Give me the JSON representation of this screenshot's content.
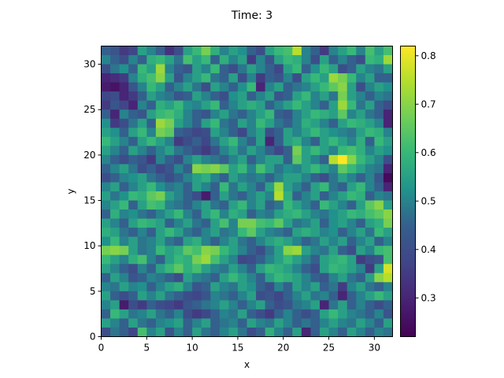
{
  "chart_data": {
    "type": "heatmap",
    "title": "Time: 3",
    "xlabel": "x",
    "ylabel": "y",
    "xlim": [
      0,
      32
    ],
    "ylim": [
      0,
      32
    ],
    "xticks": [
      0,
      5,
      10,
      15,
      20,
      25,
      30
    ],
    "yticks": [
      0,
      5,
      10,
      15,
      20,
      25,
      30
    ],
    "colormap": "viridis",
    "colorbar": {
      "min": 0.22,
      "max": 0.82,
      "ticks": [
        0.3,
        0.4,
        0.5,
        0.6,
        0.7,
        0.8
      ]
    },
    "grid_rows": 32,
    "grid_cols": 32,
    "row_order": "top-to-bottom (y=31 first)",
    "values": [
      [
        0.45,
        0.42,
        0.35,
        0.38,
        0.55,
        0.5,
        0.45,
        0.33,
        0.4,
        0.55,
        0.6,
        0.68,
        0.58,
        0.5,
        0.55,
        0.52,
        0.45,
        0.4,
        0.55,
        0.6,
        0.62,
        0.75,
        0.5,
        0.45,
        0.35,
        0.5,
        0.55,
        0.6,
        0.5,
        0.62,
        0.55,
        0.62
      ],
      [
        0.5,
        0.45,
        0.4,
        0.5,
        0.45,
        0.58,
        0.6,
        0.55,
        0.48,
        0.62,
        0.55,
        0.6,
        0.45,
        0.58,
        0.5,
        0.55,
        0.35,
        0.5,
        0.42,
        0.55,
        0.6,
        0.58,
        0.5,
        0.4,
        0.55,
        0.45,
        0.5,
        0.45,
        0.4,
        0.6,
        0.58,
        0.72
      ],
      [
        0.4,
        0.48,
        0.52,
        0.45,
        0.6,
        0.55,
        0.72,
        0.5,
        0.45,
        0.42,
        0.55,
        0.5,
        0.6,
        0.45,
        0.4,
        0.48,
        0.55,
        0.5,
        0.45,
        0.38,
        0.55,
        0.6,
        0.45,
        0.52,
        0.6,
        0.55,
        0.4,
        0.45,
        0.55,
        0.5,
        0.48,
        0.55
      ],
      [
        0.3,
        0.32,
        0.35,
        0.5,
        0.58,
        0.62,
        0.7,
        0.55,
        0.42,
        0.5,
        0.55,
        0.6,
        0.48,
        0.45,
        0.55,
        0.4,
        0.5,
        0.35,
        0.45,
        0.42,
        0.5,
        0.4,
        0.55,
        0.6,
        0.55,
        0.72,
        0.68,
        0.6,
        0.5,
        0.55,
        0.45,
        0.45
      ],
      [
        0.28,
        0.26,
        0.3,
        0.42,
        0.5,
        0.6,
        0.55,
        0.45,
        0.5,
        0.55,
        0.48,
        0.4,
        0.55,
        0.5,
        0.45,
        0.52,
        0.6,
        0.3,
        0.5,
        0.55,
        0.45,
        0.48,
        0.5,
        0.55,
        0.6,
        0.65,
        0.7,
        0.55,
        0.4,
        0.5,
        0.55,
        0.52
      ],
      [
        0.38,
        0.4,
        0.3,
        0.35,
        0.45,
        0.55,
        0.5,
        0.48,
        0.42,
        0.45,
        0.55,
        0.5,
        0.45,
        0.4,
        0.52,
        0.55,
        0.45,
        0.5,
        0.55,
        0.42,
        0.45,
        0.55,
        0.6,
        0.5,
        0.55,
        0.48,
        0.68,
        0.55,
        0.5,
        0.45,
        0.5,
        0.48
      ],
      [
        0.35,
        0.42,
        0.38,
        0.3,
        0.5,
        0.45,
        0.58,
        0.55,
        0.6,
        0.52,
        0.5,
        0.55,
        0.6,
        0.45,
        0.5,
        0.55,
        0.58,
        0.55,
        0.45,
        0.5,
        0.55,
        0.6,
        0.55,
        0.5,
        0.45,
        0.55,
        0.72,
        0.6,
        0.48,
        0.55,
        0.45,
        0.4
      ],
      [
        0.45,
        0.3,
        0.5,
        0.45,
        0.42,
        0.55,
        0.6,
        0.62,
        0.58,
        0.5,
        0.45,
        0.42,
        0.5,
        0.55,
        0.48,
        0.45,
        0.5,
        0.55,
        0.6,
        0.45,
        0.42,
        0.5,
        0.55,
        0.6,
        0.58,
        0.55,
        0.65,
        0.5,
        0.55,
        0.48,
        0.45,
        0.3
      ],
      [
        0.52,
        0.35,
        0.4,
        0.48,
        0.55,
        0.45,
        0.72,
        0.68,
        0.55,
        0.5,
        0.45,
        0.55,
        0.6,
        0.48,
        0.45,
        0.55,
        0.5,
        0.6,
        0.55,
        0.48,
        0.45,
        0.5,
        0.58,
        0.55,
        0.5,
        0.45,
        0.55,
        0.6,
        0.58,
        0.55,
        0.5,
        0.3
      ],
      [
        0.55,
        0.52,
        0.45,
        0.55,
        0.6,
        0.5,
        0.68,
        0.65,
        0.45,
        0.42,
        0.38,
        0.4,
        0.55,
        0.5,
        0.45,
        0.38,
        0.5,
        0.55,
        0.4,
        0.45,
        0.55,
        0.5,
        0.55,
        0.6,
        0.55,
        0.52,
        0.5,
        0.48,
        0.55,
        0.6,
        0.58,
        0.5
      ],
      [
        0.6,
        0.55,
        0.5,
        0.45,
        0.55,
        0.6,
        0.55,
        0.5,
        0.35,
        0.4,
        0.45,
        0.38,
        0.48,
        0.55,
        0.6,
        0.5,
        0.45,
        0.55,
        0.3,
        0.45,
        0.55,
        0.58,
        0.5,
        0.45,
        0.55,
        0.6,
        0.55,
        0.5,
        0.58,
        0.45,
        0.6,
        0.55
      ],
      [
        0.55,
        0.5,
        0.45,
        0.55,
        0.5,
        0.45,
        0.5,
        0.55,
        0.48,
        0.45,
        0.4,
        0.35,
        0.42,
        0.5,
        0.55,
        0.48,
        0.55,
        0.5,
        0.45,
        0.38,
        0.45,
        0.68,
        0.55,
        0.6,
        0.55,
        0.5,
        0.6,
        0.62,
        0.58,
        0.5,
        0.55,
        0.52
      ],
      [
        0.5,
        0.45,
        0.4,
        0.45,
        0.42,
        0.35,
        0.5,
        0.45,
        0.4,
        0.5,
        0.55,
        0.5,
        0.48,
        0.45,
        0.5,
        0.55,
        0.45,
        0.5,
        0.55,
        0.55,
        0.45,
        0.65,
        0.55,
        0.5,
        0.45,
        0.75,
        0.82,
        0.7,
        0.6,
        0.55,
        0.5,
        0.4
      ],
      [
        0.45,
        0.5,
        0.55,
        0.48,
        0.4,
        0.45,
        0.38,
        0.42,
        0.5,
        0.45,
        0.7,
        0.68,
        0.7,
        0.65,
        0.55,
        0.6,
        0.5,
        0.62,
        0.55,
        0.48,
        0.52,
        0.5,
        0.55,
        0.6,
        0.55,
        0.5,
        0.65,
        0.6,
        0.55,
        0.5,
        0.48,
        0.3
      ],
      [
        0.4,
        0.45,
        0.5,
        0.52,
        0.55,
        0.48,
        0.45,
        0.4,
        0.45,
        0.5,
        0.55,
        0.58,
        0.5,
        0.45,
        0.55,
        0.5,
        0.48,
        0.5,
        0.45,
        0.5,
        0.55,
        0.55,
        0.5,
        0.45,
        0.4,
        0.48,
        0.55,
        0.5,
        0.45,
        0.5,
        0.42,
        0.24
      ],
      [
        0.5,
        0.55,
        0.45,
        0.5,
        0.55,
        0.6,
        0.52,
        0.48,
        0.5,
        0.45,
        0.55,
        0.5,
        0.45,
        0.6,
        0.48,
        0.55,
        0.5,
        0.45,
        0.55,
        0.72,
        0.55,
        0.5,
        0.45,
        0.55,
        0.6,
        0.48,
        0.45,
        0.55,
        0.6,
        0.5,
        0.45,
        0.3
      ],
      [
        0.55,
        0.48,
        0.52,
        0.6,
        0.58,
        0.65,
        0.68,
        0.55,
        0.5,
        0.45,
        0.4,
        0.28,
        0.45,
        0.55,
        0.48,
        0.45,
        0.5,
        0.55,
        0.5,
        0.75,
        0.58,
        0.45,
        0.5,
        0.55,
        0.45,
        0.5,
        0.55,
        0.6,
        0.58,
        0.45,
        0.5,
        0.48
      ],
      [
        0.5,
        0.55,
        0.6,
        0.45,
        0.55,
        0.62,
        0.6,
        0.5,
        0.48,
        0.45,
        0.5,
        0.55,
        0.48,
        0.45,
        0.55,
        0.6,
        0.5,
        0.55,
        0.45,
        0.48,
        0.6,
        0.55,
        0.5,
        0.45,
        0.6,
        0.55,
        0.5,
        0.45,
        0.55,
        0.65,
        0.7,
        0.55
      ],
      [
        0.45,
        0.58,
        0.5,
        0.52,
        0.48,
        0.45,
        0.5,
        0.55,
        0.6,
        0.5,
        0.45,
        0.55,
        0.6,
        0.5,
        0.58,
        0.55,
        0.45,
        0.5,
        0.48,
        0.55,
        0.58,
        0.6,
        0.55,
        0.5,
        0.48,
        0.52,
        0.55,
        0.6,
        0.58,
        0.62,
        0.65,
        0.7
      ],
      [
        0.55,
        0.5,
        0.45,
        0.55,
        0.6,
        0.58,
        0.55,
        0.45,
        0.5,
        0.55,
        0.48,
        0.45,
        0.55,
        0.62,
        0.5,
        0.68,
        0.68,
        0.62,
        0.6,
        0.65,
        0.55,
        0.48,
        0.5,
        0.55,
        0.45,
        0.52,
        0.55,
        0.5,
        0.45,
        0.55,
        0.58,
        0.68
      ],
      [
        0.58,
        0.55,
        0.48,
        0.45,
        0.5,
        0.45,
        0.55,
        0.6,
        0.55,
        0.48,
        0.45,
        0.5,
        0.55,
        0.48,
        0.5,
        0.6,
        0.65,
        0.55,
        0.5,
        0.48,
        0.45,
        0.55,
        0.58,
        0.55,
        0.5,
        0.52,
        0.45,
        0.5,
        0.55,
        0.48,
        0.6,
        0.55
      ],
      [
        0.52,
        0.6,
        0.5,
        0.55,
        0.48,
        0.5,
        0.55,
        0.48,
        0.45,
        0.55,
        0.58,
        0.5,
        0.45,
        0.5,
        0.55,
        0.48,
        0.45,
        0.5,
        0.55,
        0.58,
        0.55,
        0.5,
        0.45,
        0.48,
        0.55,
        0.5,
        0.55,
        0.45,
        0.5,
        0.55,
        0.45,
        0.5
      ],
      [
        0.68,
        0.7,
        0.68,
        0.55,
        0.48,
        0.5,
        0.6,
        0.55,
        0.58,
        0.65,
        0.62,
        0.7,
        0.68,
        0.6,
        0.55,
        0.5,
        0.45,
        0.4,
        0.48,
        0.55,
        0.7,
        0.72,
        0.55,
        0.5,
        0.48,
        0.55,
        0.45,
        0.4,
        0.55,
        0.5,
        0.6,
        0.62
      ],
      [
        0.6,
        0.55,
        0.5,
        0.58,
        0.62,
        0.5,
        0.45,
        0.55,
        0.6,
        0.58,
        0.68,
        0.72,
        0.62,
        0.55,
        0.5,
        0.38,
        0.4,
        0.45,
        0.5,
        0.55,
        0.6,
        0.55,
        0.5,
        0.45,
        0.55,
        0.58,
        0.6,
        0.55,
        0.35,
        0.4,
        0.42,
        0.62
      ],
      [
        0.55,
        0.5,
        0.45,
        0.4,
        0.5,
        0.45,
        0.55,
        0.6,
        0.65,
        0.58,
        0.62,
        0.55,
        0.5,
        0.48,
        0.55,
        0.5,
        0.45,
        0.55,
        0.6,
        0.58,
        0.55,
        0.5,
        0.45,
        0.4,
        0.55,
        0.6,
        0.58,
        0.55,
        0.5,
        0.35,
        0.55,
        0.78
      ],
      [
        0.45,
        0.55,
        0.5,
        0.42,
        0.45,
        0.5,
        0.48,
        0.45,
        0.4,
        0.55,
        0.5,
        0.48,
        0.45,
        0.55,
        0.6,
        0.55,
        0.5,
        0.45,
        0.55,
        0.6,
        0.58,
        0.55,
        0.5,
        0.45,
        0.42,
        0.5,
        0.55,
        0.48,
        0.45,
        0.55,
        0.7,
        0.75
      ],
      [
        0.5,
        0.48,
        0.55,
        0.5,
        0.52,
        0.45,
        0.5,
        0.55,
        0.58,
        0.5,
        0.42,
        0.45,
        0.55,
        0.5,
        0.48,
        0.55,
        0.52,
        0.45,
        0.4,
        0.5,
        0.45,
        0.55,
        0.5,
        0.55,
        0.45,
        0.48,
        0.35,
        0.5,
        0.55,
        0.48,
        0.45,
        0.5
      ],
      [
        0.55,
        0.45,
        0.4,
        0.45,
        0.55,
        0.5,
        0.55,
        0.48,
        0.45,
        0.4,
        0.38,
        0.42,
        0.5,
        0.48,
        0.45,
        0.5,
        0.55,
        0.4,
        0.42,
        0.38,
        0.45,
        0.5,
        0.55,
        0.48,
        0.5,
        0.45,
        0.3,
        0.45,
        0.5,
        0.55,
        0.6,
        0.55
      ],
      [
        0.5,
        0.55,
        0.28,
        0.4,
        0.35,
        0.45,
        0.4,
        0.38,
        0.35,
        0.42,
        0.45,
        0.48,
        0.5,
        0.55,
        0.5,
        0.45,
        0.5,
        0.55,
        0.45,
        0.4,
        0.42,
        0.48,
        0.5,
        0.55,
        0.3,
        0.48,
        0.55,
        0.45,
        0.5,
        0.45,
        0.4,
        0.45
      ],
      [
        0.45,
        0.6,
        0.55,
        0.48,
        0.5,
        0.55,
        0.48,
        0.45,
        0.5,
        0.4,
        0.35,
        0.38,
        0.45,
        0.5,
        0.48,
        0.55,
        0.45,
        0.4,
        0.35,
        0.45,
        0.5,
        0.45,
        0.4,
        0.45,
        0.55,
        0.6,
        0.55,
        0.5,
        0.48,
        0.45,
        0.5,
        0.42
      ],
      [
        0.55,
        0.5,
        0.45,
        0.55,
        0.48,
        0.45,
        0.5,
        0.52,
        0.55,
        0.45,
        0.5,
        0.55,
        0.45,
        0.48,
        0.5,
        0.45,
        0.55,
        0.5,
        0.48,
        0.55,
        0.5,
        0.45,
        0.48,
        0.45,
        0.5,
        0.55,
        0.5,
        0.48,
        0.55,
        0.5,
        0.45,
        0.55
      ],
      [
        0.4,
        0.48,
        0.45,
        0.38,
        0.62,
        0.5,
        0.55,
        0.42,
        0.5,
        0.45,
        0.55,
        0.48,
        0.45,
        0.5,
        0.55,
        0.48,
        0.4,
        0.45,
        0.58,
        0.5,
        0.45,
        0.55,
        0.3,
        0.45,
        0.55,
        0.5,
        0.45,
        0.55,
        0.5,
        0.45,
        0.5,
        0.48
      ]
    ]
  }
}
